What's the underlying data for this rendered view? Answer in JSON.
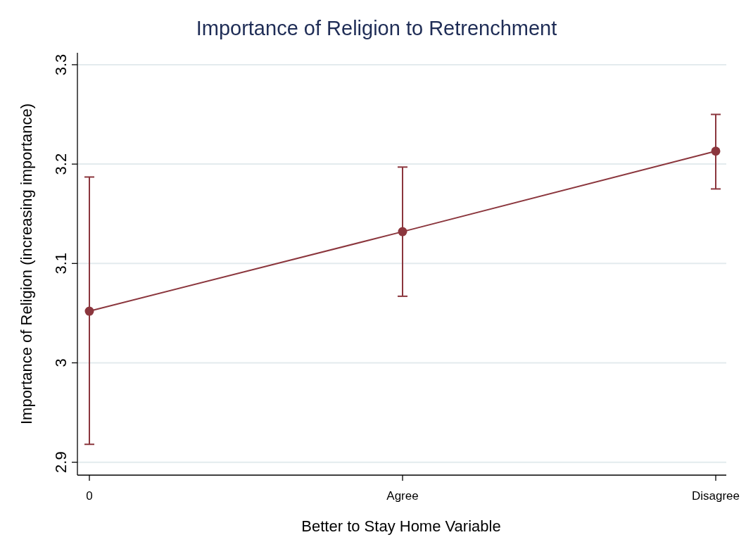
{
  "chart_data": {
    "type": "line",
    "title": "Importance of Religion to Retrenchment",
    "xlabel": "Better to Stay Home Variable",
    "ylabel": "Importance of Religion (increasing importance)",
    "categories": [
      "0",
      "Agree",
      "Disagree"
    ],
    "series": [
      {
        "color": "#8b363d",
        "values": [
          3.052,
          3.132,
          3.213
        ],
        "errors": [
          [
            2.918,
            3.187
          ],
          [
            3.067,
            3.197
          ],
          [
            3.175,
            3.25
          ]
        ]
      }
    ],
    "ylim": [
      2.887,
      3.312
    ],
    "yticks": [
      2.9,
      3,
      3.1,
      3.2,
      3.3
    ],
    "grid": "y",
    "marker": "circle"
  }
}
